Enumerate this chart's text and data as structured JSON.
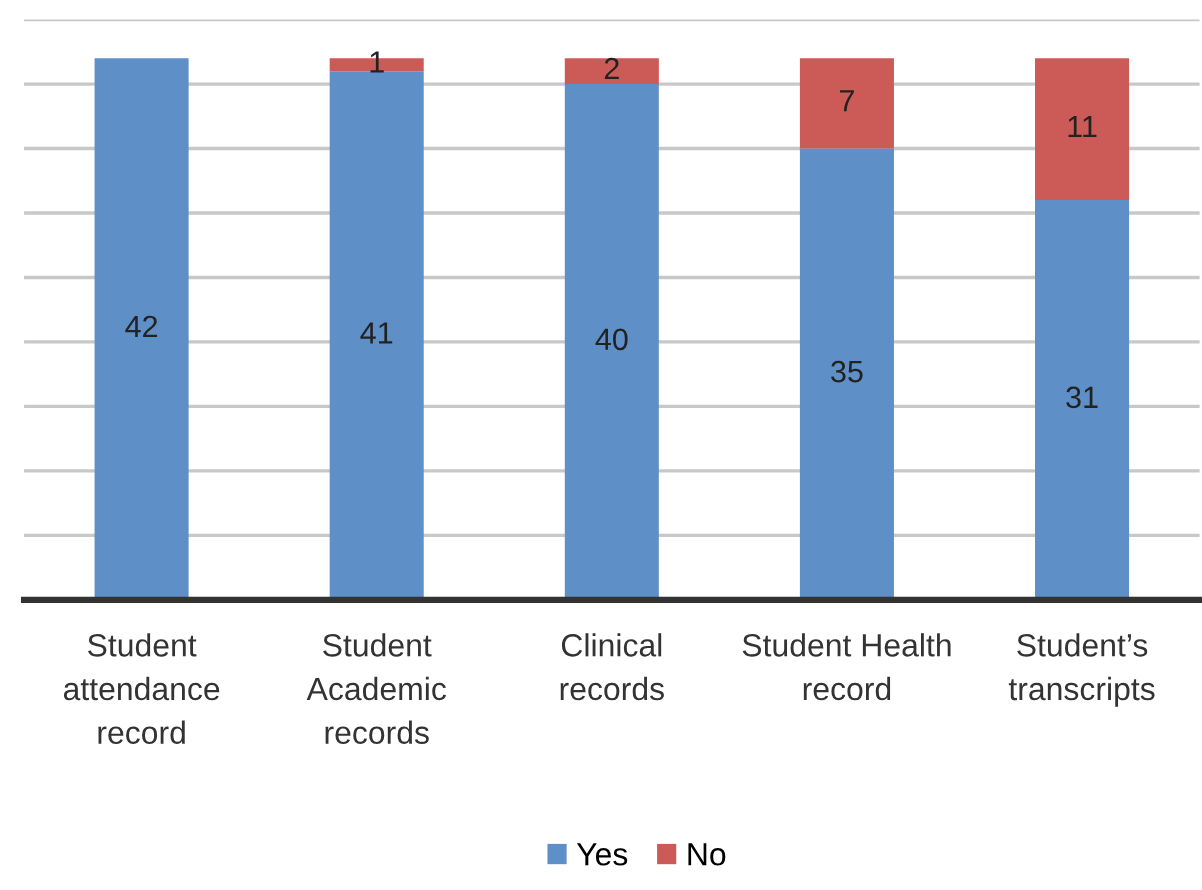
{
  "chart_data": {
    "type": "bar",
    "stacked": true,
    "categories": [
      "Student attendance record",
      "Student Academic records",
      "Clinical records",
      "Student Health record",
      "Student’s transcripts"
    ],
    "series": [
      {
        "name": "Yes",
        "color": "#5f8fc7",
        "values": [
          42,
          41,
          40,
          35,
          31
        ]
      },
      {
        "name": "No",
        "color": "#cc5b57",
        "values": [
          null,
          1,
          2,
          7,
          11
        ]
      }
    ],
    "ylim": [
      0,
      45
    ],
    "yticks": [
      {
        "value": 0,
        "label": null
      },
      {
        "value": 5,
        "label": null
      },
      {
        "value": 10,
        "label": null
      },
      {
        "value": 15,
        "label": null
      },
      {
        "value": 20,
        "label": null
      },
      {
        "value": 25,
        "label": null
      },
      {
        "value": 30,
        "label": null
      },
      {
        "value": 35,
        "label": null
      },
      {
        "value": 40,
        "label": null
      },
      {
        "value": 45,
        "label": null
      }
    ],
    "tick_labels": "x",
    "grid": "y",
    "legend": "bottom",
    "data_labels": true
  }
}
